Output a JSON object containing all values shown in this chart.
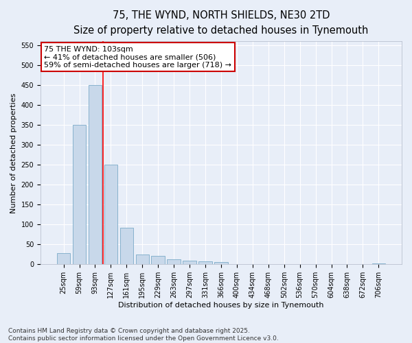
{
  "title_line1": "75, THE WYND, NORTH SHIELDS, NE30 2TD",
  "title_line2": "Size of property relative to detached houses in Tynemouth",
  "xlabel": "Distribution of detached houses by size in Tynemouth",
  "ylabel": "Number of detached properties",
  "categories": [
    "25sqm",
    "59sqm",
    "93sqm",
    "127sqm",
    "161sqm",
    "195sqm",
    "229sqm",
    "263sqm",
    "297sqm",
    "331sqm",
    "366sqm",
    "400sqm",
    "434sqm",
    "468sqm",
    "502sqm",
    "536sqm",
    "570sqm",
    "604sqm",
    "638sqm",
    "672sqm",
    "706sqm"
  ],
  "values": [
    28,
    350,
    450,
    250,
    92,
    25,
    22,
    13,
    10,
    7,
    5,
    0,
    0,
    0,
    0,
    0,
    0,
    0,
    0,
    0,
    3
  ],
  "bar_color": "#c8d8ea",
  "bar_edge_color": "#7aaac8",
  "red_line_x": 2.5,
  "annotation_text": "75 THE WYND: 103sqm\n← 41% of detached houses are smaller (506)\n59% of semi-detached houses are larger (718) →",
  "annotation_box_color": "#ffffff",
  "annotation_box_edge": "#cc0000",
  "ylim": [
    0,
    560
  ],
  "yticks": [
    0,
    50,
    100,
    150,
    200,
    250,
    300,
    350,
    400,
    450,
    500,
    550
  ],
  "footer_line1": "Contains HM Land Registry data © Crown copyright and database right 2025.",
  "footer_line2": "Contains public sector information licensed under the Open Government Licence v3.0.",
  "background_color": "#e8eef8",
  "plot_background": "#e8eef8",
  "grid_color": "#ffffff",
  "title_fontsize": 10.5,
  "subtitle_fontsize": 9.5,
  "axis_label_fontsize": 8,
  "tick_fontsize": 7,
  "footer_fontsize": 6.5,
  "annot_fontsize": 8
}
